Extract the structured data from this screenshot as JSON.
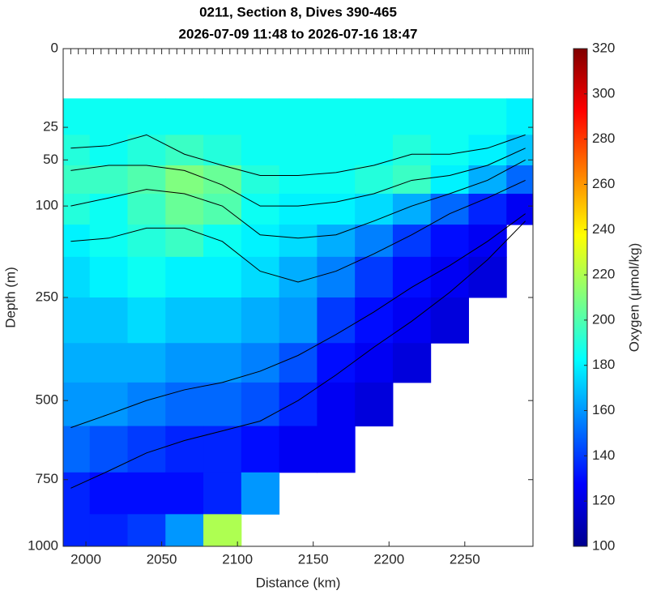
{
  "chart_data": {
    "type": "contourf",
    "title": "0211, Section 8, Dives 390-465",
    "subtitle": "2026-07-09 11:48 to 2026-07-16 18:47",
    "x_label": "Distance (km)",
    "y_label": "Depth (m)",
    "colorbar_label": "Oxygen (μmol/kg)",
    "x": [
      1990,
      2015,
      2040,
      2065,
      2090,
      2115,
      2140,
      2165,
      2190,
      2215,
      2240,
      2265,
      2290
    ],
    "depths": [
      20,
      40,
      70,
      100,
      150,
      200,
      300,
      400,
      500,
      650,
      800,
      950
    ],
    "values": [
      [
        185,
        185,
        185,
        185,
        185,
        185,
        185,
        185,
        185,
        185,
        185,
        185,
        180
      ],
      [
        190,
        185,
        190,
        195,
        190,
        185,
        185,
        185,
        185,
        190,
        185,
        180,
        170
      ],
      [
        195,
        195,
        200,
        210,
        205,
        190,
        185,
        185,
        190,
        195,
        180,
        165,
        150
      ],
      [
        190,
        185,
        195,
        205,
        200,
        185,
        180,
        180,
        175,
        165,
        150,
        135,
        125
      ],
      [
        180,
        185,
        190,
        195,
        185,
        180,
        175,
        165,
        155,
        140,
        130,
        125,
        null
      ],
      [
        175,
        180,
        185,
        180,
        180,
        175,
        165,
        155,
        140,
        130,
        125,
        120,
        null
      ],
      [
        170,
        170,
        175,
        170,
        170,
        165,
        160,
        140,
        130,
        125,
        120,
        null,
        null
      ],
      [
        165,
        165,
        165,
        160,
        160,
        155,
        145,
        130,
        125,
        120,
        null,
        null,
        null
      ],
      [
        160,
        160,
        155,
        150,
        150,
        145,
        135,
        125,
        120,
        null,
        null,
        null,
        null
      ],
      [
        150,
        145,
        140,
        135,
        135,
        130,
        125,
        125,
        null,
        null,
        null,
        null,
        null
      ],
      [
        135,
        130,
        130,
        130,
        135,
        160,
        null,
        null,
        null,
        null,
        null,
        null,
        null
      ],
      [
        135,
        135,
        140,
        160,
        220,
        null,
        null,
        null,
        null,
        null,
        null,
        null,
        null
      ]
    ],
    "isopycnal_depths": [
      [
        40,
        38,
        30,
        45,
        55,
        65,
        65,
        62,
        55,
        45,
        45,
        40,
        30
      ],
      [
        60,
        55,
        55,
        60,
        75,
        100,
        100,
        95,
        85,
        70,
        65,
        55,
        40
      ],
      [
        100,
        90,
        80,
        85,
        100,
        140,
        145,
        140,
        120,
        100,
        85,
        70,
        50
      ],
      [
        150,
        145,
        130,
        130,
        150,
        200,
        220,
        200,
        170,
        140,
        110,
        90,
        70
      ],
      [
        580,
        540,
        500,
        470,
        450,
        420,
        380,
        330,
        280,
        230,
        190,
        150,
        110
      ],
      [
        780,
        720,
        660,
        620,
        590,
        560,
        500,
        430,
        360,
        300,
        240,
        180,
        120
      ]
    ],
    "dive_x": [
      1990,
      1995,
      2000,
      2005,
      2010,
      2015,
      2020,
      2025,
      2030,
      2035,
      2040,
      2045,
      2050,
      2055,
      2060,
      2065,
      2070,
      2075,
      2080,
      2085,
      2090,
      2095,
      2100,
      2105,
      2110,
      2115,
      2120,
      2125,
      2130,
      2135,
      2140,
      2145,
      2150,
      2155,
      2160,
      2165,
      2170,
      2175,
      2180,
      2185,
      2190,
      2195,
      2200,
      2205,
      2210,
      2215,
      2220,
      2225,
      2230,
      2235,
      2240,
      2245,
      2250,
      2255,
      2260,
      2265,
      2270,
      2275,
      2280,
      2283,
      2286,
      2288,
      2290,
      2292
    ],
    "xlim": [
      1985,
      2295
    ],
    "xticks": [
      2000,
      2050,
      2100,
      2150,
      2200,
      2250
    ],
    "ylim": [
      0,
      1000
    ],
    "yticks": [
      0,
      25,
      50,
      100,
      250,
      500,
      750,
      1000
    ],
    "yscale": "sqrt",
    "yinvert": true,
    "colormap": "jet",
    "clim": [
      100,
      320
    ],
    "cticks": [
      100,
      120,
      140,
      160,
      180,
      200,
      220,
      240,
      260,
      280,
      300,
      320
    ],
    "contour_color": "#000000"
  }
}
